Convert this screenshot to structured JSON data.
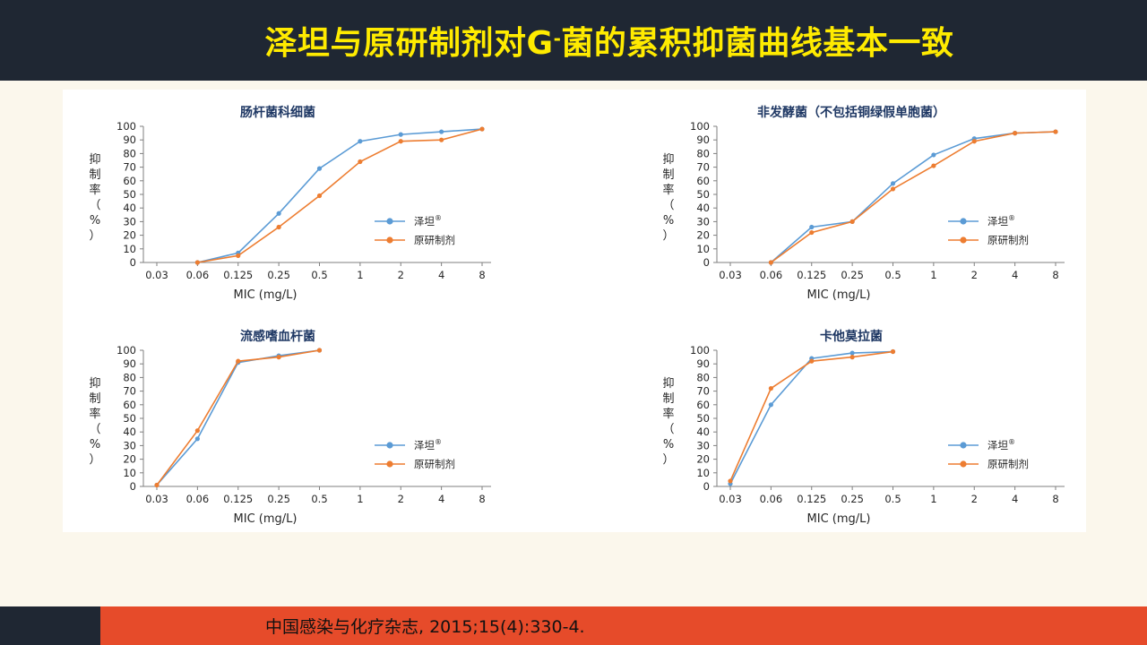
{
  "header": {
    "title_main": "泽坦与原研制剂对G",
    "title_sup": "-",
    "title_tail": "菌的累积抑菌曲线基本一致"
  },
  "footer": {
    "citation": "中国感染与化疗杂志, 2015;15(4):330-4."
  },
  "colors": {
    "title_bg": "#1f2733",
    "title_text": "#ffeb00",
    "footer_accent": "#e64b2a",
    "series_blue": "#5b9bd5",
    "series_orange": "#ed7d31"
  },
  "chart_data": [
    {
      "type": "line",
      "title": "肠杆菌科细菌",
      "xlabel": "MIC (mg/L)",
      "ylabel": "抑制率（%）",
      "categories": [
        "0.03",
        "0.06",
        "0.125",
        "0.25",
        "0.5",
        "1",
        "2",
        "4",
        "8"
      ],
      "ylim": [
        0,
        100
      ],
      "yticks": [
        0,
        10,
        20,
        30,
        40,
        50,
        60,
        70,
        80,
        90,
        100
      ],
      "legend": "right-middle",
      "series": [
        {
          "name": "泽坦",
          "mark": "®",
          "color": "#5b9bd5",
          "values": [
            null,
            0,
            7,
            36,
            69,
            89,
            94,
            96,
            98
          ]
        },
        {
          "name": "原研制剂",
          "color": "#ed7d31",
          "values": [
            null,
            0,
            5,
            26,
            49,
            74,
            89,
            90,
            98
          ]
        }
      ]
    },
    {
      "type": "line",
      "title": "非发酵菌（不包括铜绿假单胞菌）",
      "xlabel": "MIC (mg/L)",
      "ylabel": "抑制率（%）",
      "categories": [
        "0.03",
        "0.06",
        "0.125",
        "0.25",
        "0.5",
        "1",
        "2",
        "4",
        "8"
      ],
      "ylim": [
        0,
        100
      ],
      "yticks": [
        0,
        10,
        20,
        30,
        40,
        50,
        60,
        70,
        80,
        90,
        100
      ],
      "legend": "right-middle",
      "series": [
        {
          "name": "泽坦",
          "mark": "®",
          "color": "#5b9bd5",
          "values": [
            null,
            0,
            26,
            30,
            58,
            79,
            91,
            95,
            96
          ]
        },
        {
          "name": "原研制剂",
          "color": "#ed7d31",
          "values": [
            null,
            0,
            22,
            30,
            54,
            71,
            89,
            95,
            96
          ]
        }
      ]
    },
    {
      "type": "line",
      "title": "流感嗜血杆菌",
      "xlabel": "MIC (mg/L)",
      "ylabel": "抑制率（%）",
      "categories": [
        "0.03",
        "0.06",
        "0.125",
        "0.25",
        "0.5",
        "1",
        "2",
        "4",
        "8"
      ],
      "ylim": [
        0,
        100
      ],
      "yticks": [
        0,
        10,
        20,
        30,
        40,
        50,
        60,
        70,
        80,
        90,
        100
      ],
      "legend": "right-middle",
      "series": [
        {
          "name": "泽坦",
          "mark": "®",
          "color": "#5b9bd5",
          "values": [
            1,
            35,
            91,
            96,
            100,
            null,
            null,
            null,
            null
          ]
        },
        {
          "name": "原研制剂",
          "color": "#ed7d31",
          "values": [
            1,
            41,
            92,
            95,
            100,
            null,
            null,
            null,
            null
          ]
        }
      ]
    },
    {
      "type": "line",
      "title": "卡他莫拉菌",
      "xlabel": "MIC (mg/L)",
      "ylabel": "抑制率（%）",
      "categories": [
        "0.03",
        "0.06",
        "0.125",
        "0.25",
        "0.5",
        "1",
        "2",
        "4",
        "8"
      ],
      "ylim": [
        0,
        100
      ],
      "yticks": [
        0,
        10,
        20,
        30,
        40,
        50,
        60,
        70,
        80,
        90,
        100
      ],
      "legend": "right-middle",
      "series": [
        {
          "name": "泽坦",
          "mark": "®",
          "color": "#5b9bd5",
          "values": [
            2,
            60,
            94,
            98,
            99,
            null,
            null,
            null,
            null
          ]
        },
        {
          "name": "原研制剂",
          "color": "#ed7d31",
          "values": [
            4,
            72,
            92,
            95,
            99,
            null,
            null,
            null,
            null
          ]
        }
      ]
    }
  ]
}
